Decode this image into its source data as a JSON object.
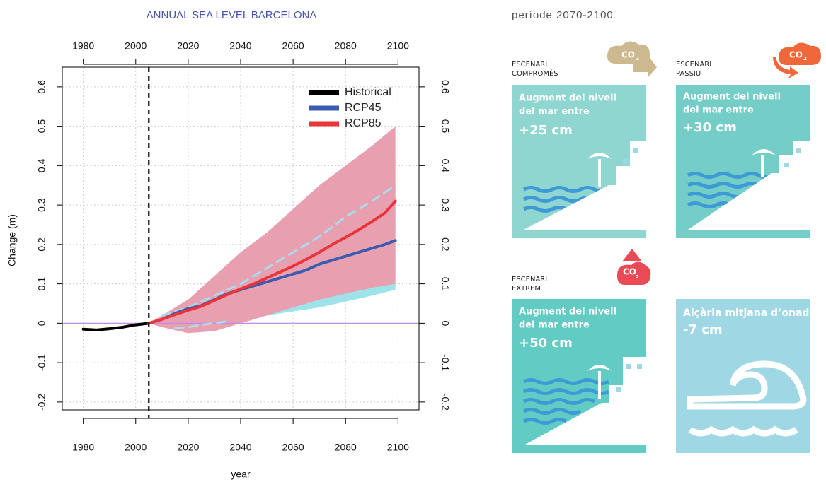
{
  "chart_data": {
    "type": "line",
    "title": "ANNUAL SEA LEVEL BARCELONA",
    "xlabel": "year",
    "ylabel": "Change (m)",
    "xlim": [
      1972,
      2108
    ],
    "xticks": [
      1980,
      2000,
      2020,
      2040,
      2060,
      2080,
      2100
    ],
    "ylim": [
      -0.22,
      0.65
    ],
    "yticks": [
      -0.2,
      -0.1,
      0,
      0.1,
      0.2,
      0.3,
      0.4,
      0.5,
      0.6
    ],
    "grid": true,
    "legend": "top-right",
    "hline": 0,
    "hline_color": "#c58be0",
    "vline": 2005,
    "bands": [
      {
        "color": "#9fe3ea",
        "x": [
          2010,
          2020,
          2030,
          2040,
          2050,
          2060,
          2070,
          2080,
          2090,
          2099
        ],
        "lower": [
          -0.01,
          -0.02,
          -0.015,
          0,
          0.02,
          0.03,
          0.04,
          0.055,
          0.07,
          0.085
        ],
        "upper": [
          0.02,
          0.05,
          0.09,
          0.13,
          0.17,
          0.21,
          0.25,
          0.29,
          0.32,
          0.35
        ]
      },
      {
        "color": "#e8a0b0",
        "x": [
          2005,
          2010,
          2020,
          2030,
          2040,
          2050,
          2060,
          2070,
          2080,
          2090,
          2099
        ],
        "lower": [
          0,
          -0.01,
          -0.025,
          -0.02,
          0,
          0.02,
          0.04,
          0.06,
          0.075,
          0.09,
          0.1
        ],
        "upper": [
          0,
          0.02,
          0.06,
          0.12,
          0.18,
          0.23,
          0.29,
          0.35,
          0.4,
          0.45,
          0.5
        ]
      }
    ],
    "series": [
      {
        "color": "#a8dcee",
        "dash": true,
        "x": [
          2010,
          2020,
          2030,
          2040,
          2050,
          2060,
          2070,
          2080,
          2090,
          2099
        ],
        "values": [
          0.02,
          0.04,
          0.07,
          0.1,
          0.14,
          0.18,
          0.22,
          0.27,
          0.31,
          0.35
        ]
      },
      {
        "color": "#a8dcee",
        "dash": true,
        "x": [
          2015,
          2020,
          2025,
          2030,
          2035
        ],
        "values": [
          -0.012,
          -0.01,
          -0.004,
          0,
          0.005
        ]
      },
      {
        "name": "Historical",
        "color": "#000000",
        "x": [
          1980,
          1985,
          1990,
          1995,
          2000,
          2005
        ],
        "values": [
          -0.015,
          -0.017,
          -0.014,
          -0.01,
          -0.004,
          0
        ]
      },
      {
        "name": "RCP45",
        "color": "#3a5bb0",
        "x": [
          2005,
          2010,
          2015,
          2020,
          2025,
          2030,
          2035,
          2040,
          2045,
          2050,
          2055,
          2060,
          2065,
          2070,
          2075,
          2080,
          2085,
          2090,
          2095,
          2099
        ],
        "values": [
          0,
          0.01,
          0.025,
          0.037,
          0.045,
          0.06,
          0.075,
          0.085,
          0.095,
          0.105,
          0.115,
          0.125,
          0.135,
          0.15,
          0.16,
          0.17,
          0.18,
          0.19,
          0.2,
          0.21
        ]
      },
      {
        "name": "RCP85",
        "color": "#e8343a",
        "x": [
          2005,
          2010,
          2015,
          2020,
          2025,
          2030,
          2035,
          2040,
          2045,
          2050,
          2055,
          2060,
          2065,
          2070,
          2075,
          2080,
          2085,
          2090,
          2095,
          2099
        ],
        "values": [
          0,
          0.01,
          0.022,
          0.033,
          0.043,
          0.058,
          0.073,
          0.087,
          0.1,
          0.115,
          0.13,
          0.145,
          0.162,
          0.18,
          0.2,
          0.218,
          0.237,
          0.258,
          0.28,
          0.31
        ]
      }
    ]
  },
  "period": "període 2070-2100",
  "icon_label": {
    "main": "CO",
    "sub": "2"
  },
  "panels": [
    {
      "scenario": [
        "ESCENARI",
        "COMPROMÈS"
      ],
      "text": [
        "Augment del nivell",
        "del mar entre"
      ],
      "value": "+25 cm"
    },
    {
      "scenario": [
        "ESCENARI",
        "PASSIU"
      ],
      "text": [
        "Augment del nivell",
        "del mar entre"
      ],
      "value": "+30 cm"
    },
    {
      "scenario": [
        "ESCENARI",
        "EXTREM"
      ],
      "text": [
        "Augment del nivell",
        "del mar entre"
      ],
      "value": "+50 cm"
    },
    {
      "text": [
        "Alçària mitjana d’onada"
      ],
      "value": "-7 cm"
    }
  ]
}
